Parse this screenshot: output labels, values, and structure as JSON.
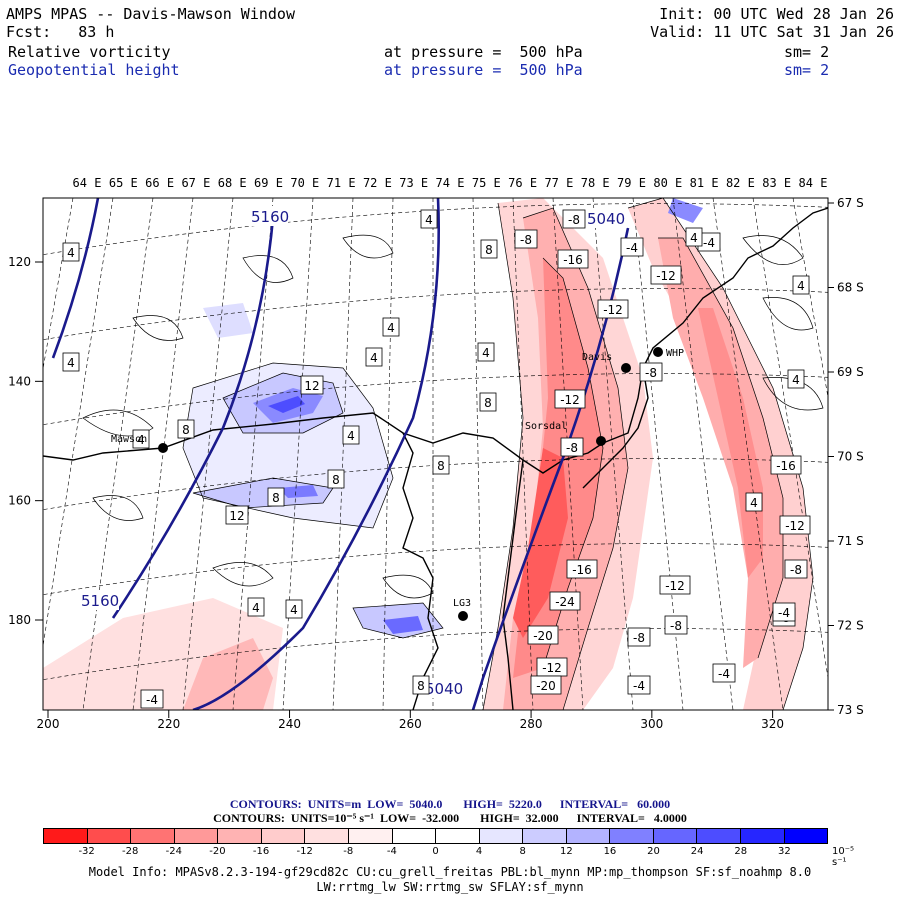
{
  "header": {
    "title": "AMPS MPAS -- Davis-Mawson Window",
    "forecast": "Fcst:   83 h",
    "init": "Init: 00 UTC Wed 28 Jan 26",
    "valid": "Valid: 11 UTC Sat 31 Jan 26",
    "field1": {
      "name": "Relative vorticity",
      "level": "at pressure =  500 hPa",
      "sm": "sm= 2"
    },
    "field2": {
      "name": "Geopotential height",
      "level": "at pressure =  500 hPa",
      "sm": "sm= 2"
    }
  },
  "map": {
    "longitude_labels": [
      "64 E",
      "65 E",
      "66 E",
      "67 E",
      "68 E",
      "69 E",
      "70 E",
      "71 E",
      "72 E",
      "73 E",
      "74 E",
      "75 E",
      "76 E",
      "77 E",
      "78 E",
      "79 E",
      "80 E",
      "81 E",
      "82 E",
      "83 E",
      "84 E"
    ],
    "latitude_labels": [
      "67 S",
      "68 S",
      "69 S",
      "70 S",
      "71 S",
      "72 S",
      "73 S"
    ],
    "x_ticks": [
      "200",
      "220",
      "240",
      "260",
      "280",
      "300",
      "320"
    ],
    "y_ticks": [
      "120",
      "140",
      "160",
      "180"
    ],
    "stations": [
      {
        "name": "Mawson"
      },
      {
        "name": "Davis"
      },
      {
        "name": "WHP"
      },
      {
        "name": "Sorsdal"
      },
      {
        "name": "LG3"
      }
    ],
    "height_labels": [
      "5160",
      "5160",
      "5040",
      "5040"
    ],
    "vorticity_labels": [
      "4",
      "4",
      "8",
      "4",
      "4",
      "8",
      "4",
      "4",
      "8",
      "4",
      "4",
      "8",
      "12",
      "8",
      "8",
      "12",
      "4",
      "4",
      "8",
      "-8",
      "-8",
      "-4",
      "-16",
      "-12",
      "-12",
      "-4",
      "-8",
      "-12",
      "-8",
      "-16",
      "-12",
      "-8",
      "-24",
      "-8",
      "-20",
      "-12",
      "-20",
      "-4",
      "-4",
      "-16",
      "-8",
      "-4",
      "-12",
      "-8",
      "-4",
      "4",
      "4",
      "4",
      "4"
    ],
    "colors": {
      "height_contour": "#1a1a8c",
      "coast": "#000000",
      "grid": "#000000"
    }
  },
  "legend": {
    "line1": {
      "label": "CONTOURS:",
      "units": "UNITS=m",
      "low": "LOW=  5040.0",
      "high": "HIGH=  5220.0",
      "interval": "INTERVAL=   60.000"
    },
    "line2": {
      "label": "CONTOURS:",
      "units": "UNITS=10⁻⁵ s⁻¹",
      "low": "LOW=  -32.000",
      "high": "HIGH=  32.000",
      "interval": "INTERVAL=   4.0000"
    },
    "colorbar_colors": [
      "#ff1a1a",
      "#ff4d4d",
      "#ff7373",
      "#ff9999",
      "#ffb3b3",
      "#ffcccc",
      "#ffe0e0",
      "#fff0f0",
      "#ffffff",
      "#ffffff",
      "#e6e6ff",
      "#ccccff",
      "#b3b3ff",
      "#8080ff",
      "#6666ff",
      "#4d4dff",
      "#2626ff",
      "#0000ff"
    ],
    "colorbar_labels": [
      "-32",
      "-28",
      "-24",
      "-20",
      "-16",
      "-12",
      "-8",
      "-4",
      "0",
      "4",
      "8",
      "12",
      "16",
      "20",
      "24",
      "28",
      "32"
    ],
    "colorbar_units": "10⁻⁵ s⁻¹"
  },
  "model_info": {
    "line1": "Model Info: MPASv8.2.3-194-gf29cd82c CU:cu_grell_freitas PBL:bl_mynn MP:mp_thompson SF:sf_noahmp 8.0",
    "line2": "LW:rrtmg_lw SW:rrtmg_sw SFLAY:sf_mynn"
  }
}
